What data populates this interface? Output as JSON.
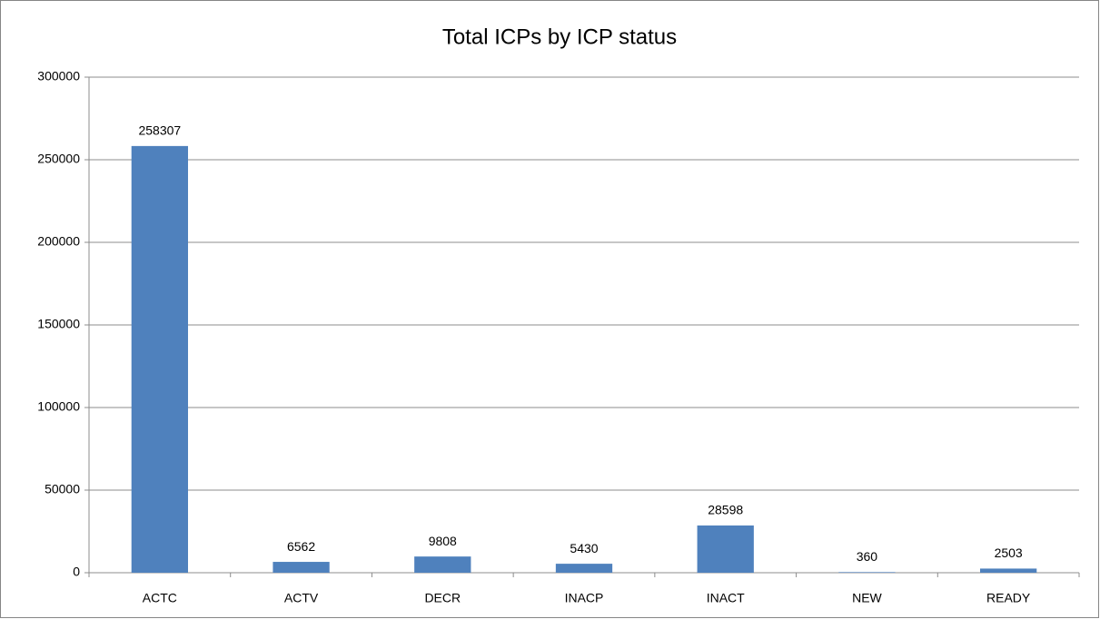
{
  "chart_data": {
    "type": "bar",
    "title": "Total ICPs by ICP status",
    "categories": [
      "ACTC",
      "ACTV",
      "DECR",
      "INACP",
      "INACT",
      "NEW",
      "READY"
    ],
    "values": [
      258307,
      6562,
      9808,
      5430,
      28598,
      360,
      2503
    ],
    "color": "#4f81bd",
    "ylim": [
      0,
      300000
    ],
    "yticks": [
      0,
      50000,
      100000,
      150000,
      200000,
      250000,
      300000
    ],
    "grid": true,
    "data_labels": true
  }
}
